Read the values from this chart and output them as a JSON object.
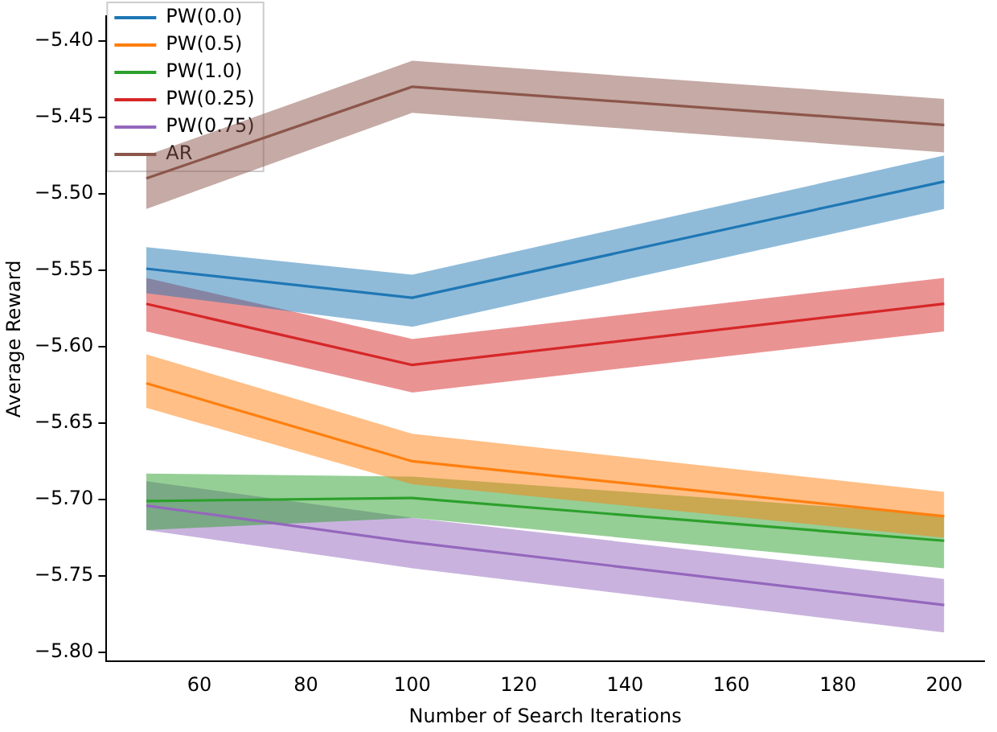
{
  "chart_data": {
    "type": "line",
    "xlabel": "Number of Search Iterations",
    "ylabel": "Average Reward",
    "x": [
      50,
      100,
      200
    ],
    "xlim": [
      42.5,
      207.5
    ],
    "xticks": [
      60,
      80,
      100,
      120,
      140,
      160,
      180,
      200
    ],
    "ylim": [
      -5.806,
      -5.384
    ],
    "yticks": [
      {
        "value": -5.8,
        "label": "−5.80"
      },
      {
        "value": -5.75,
        "label": "−5.75"
      },
      {
        "value": -5.7,
        "label": "−5.70"
      },
      {
        "value": -5.65,
        "label": "−5.65"
      },
      {
        "value": -5.6,
        "label": "−5.60"
      },
      {
        "value": -5.55,
        "label": "−5.55"
      },
      {
        "value": -5.5,
        "label": "−5.50"
      },
      {
        "value": -5.45,
        "label": "−5.45"
      },
      {
        "value": -5.4,
        "label": "−5.40"
      }
    ],
    "grid": false,
    "legend": "top left",
    "marker": "none",
    "line_style": "solid",
    "series": [
      {
        "name": "PW(0.0)",
        "color": "#1f77b4",
        "values": [
          -5.549,
          -5.568,
          -5.492
        ],
        "lower": [
          -5.565,
          -5.587,
          -5.51
        ],
        "upper": [
          -5.535,
          -5.553,
          -5.475
        ]
      },
      {
        "name": "PW(0.5)",
        "color": "#ff7f0e",
        "values": [
          -5.624,
          -5.675,
          -5.711
        ],
        "lower": [
          -5.64,
          -5.69,
          -5.725
        ],
        "upper": [
          -5.605,
          -5.657,
          -5.695
        ]
      },
      {
        "name": "PW(1.0)",
        "color": "#2ca02c",
        "values": [
          -5.701,
          -5.699,
          -5.727
        ],
        "lower": [
          -5.72,
          -5.712,
          -5.745
        ],
        "upper": [
          -5.683,
          -5.685,
          -5.71
        ]
      },
      {
        "name": "PW(0.25)",
        "color": "#d62728",
        "values": [
          -5.572,
          -5.612,
          -5.572
        ],
        "lower": [
          -5.59,
          -5.63,
          -5.59
        ],
        "upper": [
          -5.555,
          -5.595,
          -5.555
        ]
      },
      {
        "name": "PW(0.75)",
        "color": "#9467bd",
        "values": [
          -5.704,
          -5.728,
          -5.769
        ],
        "lower": [
          -5.72,
          -5.745,
          -5.787
        ],
        "upper": [
          -5.688,
          -5.712,
          -5.752
        ]
      },
      {
        "name": "AR",
        "color": "#8c564b",
        "values": [
          -5.49,
          -5.43,
          -5.455
        ],
        "lower": [
          -5.51,
          -5.447,
          -5.473
        ],
        "upper": [
          -5.475,
          -5.413,
          -5.438
        ]
      }
    ]
  }
}
